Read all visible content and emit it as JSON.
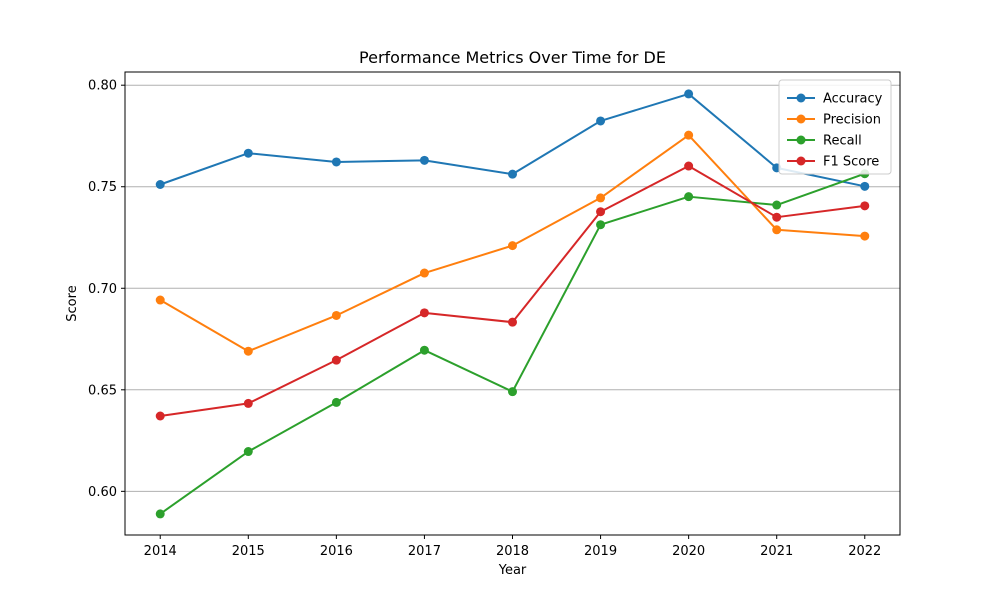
{
  "chart_data": {
    "type": "line",
    "title": "Performance Metrics Over Time for DE",
    "xlabel": "Year",
    "ylabel": "Score",
    "x": [
      2014,
      2015,
      2016,
      2017,
      2018,
      2019,
      2020,
      2021,
      2022
    ],
    "x_tick_labels": [
      "2014",
      "2015",
      "2016",
      "2017",
      "2018",
      "2019",
      "2020",
      "2021",
      "2022"
    ],
    "y_ticks": [
      0.6,
      0.65,
      0.7,
      0.75,
      0.8
    ],
    "y_tick_labels": [
      "0.60",
      "0.65",
      "0.70",
      "0.75",
      "0.80"
    ],
    "xlim": [
      2013.6,
      2022.4
    ],
    "ylim": [
      0.5785,
      0.8065
    ],
    "grid": "y-major",
    "legend_position": "top-right",
    "series": [
      {
        "name": "Accuracy",
        "color": "#1f77b4",
        "values": [
          0.7511,
          0.7665,
          0.7622,
          0.763,
          0.7562,
          0.7824,
          0.7957,
          0.7593,
          0.7502
        ]
      },
      {
        "name": "Precision",
        "color": "#ff7f0e",
        "values": [
          0.6942,
          0.669,
          0.6866,
          0.7075,
          0.721,
          0.7445,
          0.7754,
          0.7288,
          0.7257
        ]
      },
      {
        "name": "Recall",
        "color": "#2ca02c",
        "values": [
          0.5889,
          0.6196,
          0.6438,
          0.6695,
          0.6491,
          0.7313,
          0.7451,
          0.741,
          0.7564
        ]
      },
      {
        "name": "F1 Score",
        "color": "#d62728",
        "values": [
          0.6371,
          0.6433,
          0.6646,
          0.6879,
          0.6833,
          0.7377,
          0.7602,
          0.735,
          0.7406
        ]
      }
    ]
  }
}
